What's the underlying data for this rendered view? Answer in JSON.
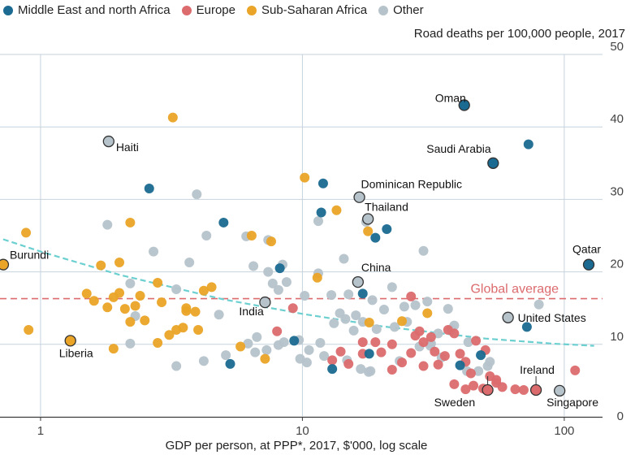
{
  "legend": [
    {
      "name": "Middle East and north Africa",
      "color": "#1a6a91"
    },
    {
      "name": "Europe",
      "color": "#dc6b6e"
    },
    {
      "name": "Sub-Saharan Africa",
      "color": "#eaa427"
    },
    {
      "name": "Other",
      "color": "#b6c3cb"
    }
  ],
  "chart_data": {
    "type": "scatter",
    "title": "Road deaths per 100,000 people, 2017",
    "xlabel": "GDP per person, at PPP*, 2017, $'000, log scale",
    "ylabel": "Road deaths per 100,000 people, 2017",
    "x_scale": "log",
    "xlim": [
      0.7,
      140
    ],
    "ylim": [
      0,
      50
    ],
    "x_ticks": [
      1,
      10,
      100
    ],
    "y_ticks": [
      0,
      10,
      20,
      30,
      40,
      50
    ],
    "grid": true,
    "legend_position": "top-left",
    "global_average": {
      "label": "Global average",
      "value": 16.3,
      "color": "#dc6b6e"
    },
    "trend_line": {
      "color": "#6ccfd0",
      "points": [
        [
          0.72,
          24.5
        ],
        [
          1,
          22.8
        ],
        [
          2,
          19.6
        ],
        [
          5,
          16.2
        ],
        [
          10,
          14.2
        ],
        [
          20,
          12.5
        ],
        [
          50,
          10.8
        ],
        [
          90,
          10.1
        ],
        [
          130,
          9.8
        ]
      ]
    },
    "series": [
      {
        "name": "Middle East and north Africa",
        "color": "#1a6a91",
        "points": [
          [
            41.5,
            43
          ],
          [
            73,
            37.6
          ],
          [
            53.5,
            35
          ],
          [
            124,
            21
          ],
          [
            2.6,
            31.5
          ],
          [
            5,
            26.8
          ],
          [
            12,
            32.2
          ],
          [
            11.8,
            28.2
          ],
          [
            21,
            25.9
          ],
          [
            19,
            24.7
          ],
          [
            8.2,
            20.5
          ],
          [
            17,
            17
          ],
          [
            5.3,
            7.3
          ],
          [
            9.3,
            10.5
          ],
          [
            13,
            6.6
          ],
          [
            18,
            8.7
          ],
          [
            40,
            7.1
          ],
          [
            72,
            12.4
          ],
          [
            48,
            8.5
          ]
        ]
      },
      {
        "name": "Europe",
        "color": "#dc6b6e",
        "points": [
          [
            26,
            16.6
          ],
          [
            8,
            11.8
          ],
          [
            9.2,
            15
          ],
          [
            14,
            9
          ],
          [
            13,
            7.8
          ],
          [
            15,
            7.3
          ],
          [
            17,
            8.7
          ],
          [
            19,
            10.3
          ],
          [
            20,
            8.9
          ],
          [
            22,
            10
          ],
          [
            24,
            7.5
          ],
          [
            26,
            8.8
          ],
          [
            27,
            11.2
          ],
          [
            28,
            11.8
          ],
          [
            29,
            10.3
          ],
          [
            31,
            11
          ],
          [
            32,
            9
          ],
          [
            33,
            7.2
          ],
          [
            35,
            8.4
          ],
          [
            36,
            12
          ],
          [
            38,
            11.5
          ],
          [
            40,
            8.7
          ],
          [
            42,
            7.6
          ],
          [
            44,
            6
          ],
          [
            45,
            4.3
          ],
          [
            46,
            10.5
          ],
          [
            49,
            3.9
          ],
          [
            50,
            9.2
          ],
          [
            52,
            5.6
          ],
          [
            55,
            4.7
          ],
          [
            58,
            4.1
          ],
          [
            65,
            3.8
          ],
          [
            70,
            3.7
          ],
          [
            110,
            6.4
          ],
          [
            55,
            5.1
          ],
          [
            42,
            3.8
          ],
          [
            38,
            4.5
          ],
          [
            29,
            7
          ],
          [
            22,
            6.5
          ],
          [
            17,
            10.3
          ],
          [
            78,
            3.7
          ],
          [
            51,
            3.7
          ]
        ]
      },
      {
        "name": "Sub-Saharan Africa",
        "color": "#eaa427",
        "points": [
          [
            3.2,
            41.3
          ],
          [
            0.88,
            25.4
          ],
          [
            2.2,
            26.8
          ],
          [
            6.4,
            25
          ],
          [
            7.6,
            24.2
          ],
          [
            10.2,
            33
          ],
          [
            13.5,
            28.5
          ],
          [
            0.72,
            21
          ],
          [
            1.7,
            20.9
          ],
          [
            2.0,
            21.3
          ],
          [
            2.8,
            18.5
          ],
          [
            0.9,
            12
          ],
          [
            1.3,
            10.5
          ],
          [
            1.5,
            17
          ],
          [
            1.6,
            16
          ],
          [
            1.8,
            15.1
          ],
          [
            1.9,
            16.5
          ],
          [
            2.0,
            17.1
          ],
          [
            2.1,
            14.9
          ],
          [
            2.2,
            13.1
          ],
          [
            2.3,
            15.3
          ],
          [
            2.4,
            16.7
          ],
          [
            2.5,
            13.3
          ],
          [
            2.9,
            15.8
          ],
          [
            3.1,
            11.3
          ],
          [
            3.3,
            12
          ],
          [
            3.5,
            12.3
          ],
          [
            3.6,
            15
          ],
          [
            3.9,
            14.5
          ],
          [
            4.2,
            17.4
          ],
          [
            4.5,
            17.9
          ],
          [
            5.8,
            9.7
          ],
          [
            7.2,
            8
          ],
          [
            3.6,
            14.6
          ],
          [
            1.9,
            9.4
          ],
          [
            11.4,
            19.2
          ],
          [
            17.8,
            25.6
          ],
          [
            18,
            13
          ],
          [
            24,
            13.2
          ],
          [
            30,
            14.3
          ],
          [
            4,
            12
          ],
          [
            2.8,
            10.2
          ]
        ]
      },
      {
        "name": "Other",
        "color": "#b6c3cb",
        "points": [
          [
            1.82,
            38
          ],
          [
            3.95,
            30.7
          ],
          [
            16.5,
            30.3
          ],
          [
            17.8,
            27.3
          ],
          [
            1.8,
            26.5
          ],
          [
            4.3,
            25
          ],
          [
            6.1,
            24.9
          ],
          [
            7.4,
            24.4
          ],
          [
            11.5,
            27
          ],
          [
            17.5,
            26.9
          ],
          [
            29,
            22.9
          ],
          [
            2.7,
            22.8
          ],
          [
            3.7,
            21.3
          ],
          [
            6.5,
            20.8
          ],
          [
            8.4,
            21
          ],
          [
            7.4,
            20
          ],
          [
            11.5,
            19.8
          ],
          [
            14.4,
            21.8
          ],
          [
            16.3,
            18.6
          ],
          [
            2.2,
            18.4
          ],
          [
            3.3,
            17.6
          ],
          [
            7.2,
            15.8
          ],
          [
            7.7,
            18.4
          ],
          [
            8.1,
            17.5
          ],
          [
            8.7,
            18.6
          ],
          [
            10.2,
            16.7
          ],
          [
            12.9,
            16.8
          ],
          [
            15,
            16.9
          ],
          [
            16,
            14
          ],
          [
            18.5,
            16.1
          ],
          [
            22,
            17.9
          ],
          [
            24.5,
            15.2
          ],
          [
            27,
            15.4
          ],
          [
            30,
            15.9
          ],
          [
            36,
            14.9
          ],
          [
            38,
            12.6
          ],
          [
            61,
            13.7
          ],
          [
            80,
            15.5
          ],
          [
            20.5,
            14.8
          ],
          [
            2.3,
            13.9
          ],
          [
            4.8,
            14.1
          ],
          [
            6.2,
            10.1
          ],
          [
            6.7,
            11
          ],
          [
            7.3,
            9.2
          ],
          [
            8.5,
            10.3
          ],
          [
            9.7,
            10.6
          ],
          [
            10.6,
            9.2
          ],
          [
            11.7,
            10.2
          ],
          [
            13.2,
            12.9
          ],
          [
            13.9,
            14.3
          ],
          [
            14.6,
            13.5
          ],
          [
            15.7,
            11.9
          ],
          [
            17,
            13.1
          ],
          [
            19.2,
            12.1
          ],
          [
            22.5,
            12.4
          ],
          [
            25.1,
            13.1
          ],
          [
            28,
            9.7
          ],
          [
            31,
            10.1
          ],
          [
            33,
            11.5
          ],
          [
            37,
            12.1
          ],
          [
            43,
            10.3
          ],
          [
            47,
            6.3
          ],
          [
            51,
            7
          ],
          [
            2.2,
            10.1
          ],
          [
            3.3,
            7
          ],
          [
            4.2,
            7.7
          ],
          [
            5.1,
            8.5
          ],
          [
            6.6,
            8.9
          ],
          [
            8.1,
            9.9
          ],
          [
            9.8,
            8
          ],
          [
            10.4,
            7.5
          ],
          [
            12.1,
            8.4
          ],
          [
            14.8,
            7.8
          ],
          [
            16.7,
            6.6
          ],
          [
            18.2,
            6.3
          ],
          [
            23.5,
            7.7
          ],
          [
            30.8,
            9.8
          ],
          [
            34,
            8.2
          ],
          [
            42.5,
            6.3
          ],
          [
            52,
            7.6
          ],
          [
            96,
            3.6
          ],
          [
            17.9,
            6.2
          ]
        ]
      }
    ],
    "highlighted": [
      {
        "label": "Oman",
        "x": 41.5,
        "y": 43,
        "series": "Middle East and north Africa"
      },
      {
        "label": "Saudi Arabia",
        "x": 53.5,
        "y": 35,
        "series": "Middle East and north Africa"
      },
      {
        "label": "Qatar",
        "x": 124,
        "y": 21,
        "series": "Middle East and north Africa"
      },
      {
        "label": "Haiti",
        "x": 1.82,
        "y": 38,
        "series": "Other"
      },
      {
        "label": "Dominican Republic",
        "x": 16.5,
        "y": 30.3,
        "series": "Other"
      },
      {
        "label": "Thailand",
        "x": 17.8,
        "y": 27.3,
        "series": "Other"
      },
      {
        "label": "Burundi",
        "x": 0.72,
        "y": 21,
        "series": "Sub-Saharan Africa"
      },
      {
        "label": "China",
        "x": 16.3,
        "y": 18.6,
        "series": "Other"
      },
      {
        "label": "India",
        "x": 7.2,
        "y": 15.8,
        "series": "Other"
      },
      {
        "label": "United States",
        "x": 61,
        "y": 13.7,
        "series": "Other"
      },
      {
        "label": "Liberia",
        "x": 1.3,
        "y": 10.5,
        "series": "Sub-Saharan Africa"
      },
      {
        "label": "Ireland",
        "x": 78,
        "y": 3.7,
        "series": "Europe"
      },
      {
        "label": "Sweden",
        "x": 51,
        "y": 3.7,
        "series": "Europe"
      },
      {
        "label": "Singapore",
        "x": 96,
        "y": 3.6,
        "series": "Other"
      }
    ]
  }
}
